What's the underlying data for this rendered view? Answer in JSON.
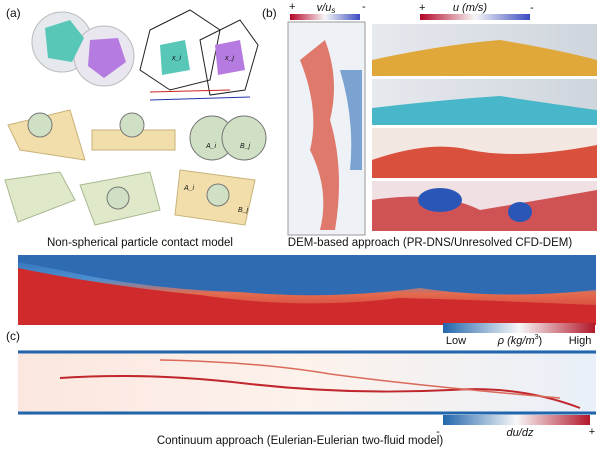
{
  "panel_a": {
    "label": "(a)",
    "particle_labels": [
      "x_i",
      "x_j",
      "A_i",
      "B_j",
      "A_i",
      "B_j"
    ],
    "caption": "Non-spherical particle contact model"
  },
  "panel_b": {
    "label": "(b)",
    "colorbar_v": {
      "plus": "+",
      "minus": "-",
      "title_main": "v/u",
      "title_sub": "s"
    },
    "colorbar_u": {
      "plus": "+",
      "minus": "-",
      "title": "u (m/s)"
    },
    "caption": "DEM-based approach (PR-DNS/Unresolved CFD-DEM)"
  },
  "panel_c": {
    "label": "(c)",
    "colorbar_rho": {
      "low": "Low",
      "high": "High",
      "title_main": "ρ (kg/m",
      "title_sup": "3",
      "title_end": ")"
    },
    "colorbar_dudz": {
      "minus": "-",
      "plus": "+",
      "title": "du/dz"
    },
    "caption": "Continuum approach (Eulerian-Eulerian two-fluid model)"
  }
}
